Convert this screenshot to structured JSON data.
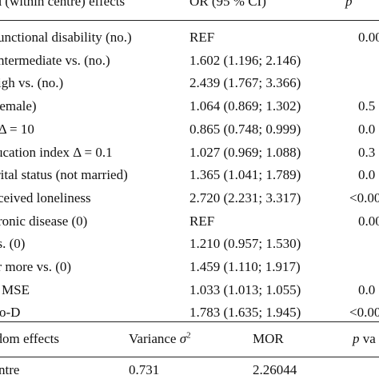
{
  "header": {
    "effects": "ed (within centre) effects",
    "or": "OR (95 % CI)",
    "p": "p**"
  },
  "fixed_rows": [
    {
      "label": "unctional disability (no.)",
      "or": "REF",
      "p": "0.00"
    },
    {
      "label": "ntermediate vs. (no.)",
      "or": "1.602 (1.196; 2.146)",
      "p": ""
    },
    {
      "label": "igh vs. (no.)",
      "or": "2.439 (1.767; 3.366)",
      "p": ""
    },
    {
      "label": "(female)",
      "or": "1.064 (0.869; 1.302)",
      "p": "0.5"
    },
    {
      "label": "e Δ = 10",
      "or": "0.865 (0.748; 0.999)",
      "p": "0.0"
    },
    {
      "label": "ucation index Δ = 0.1",
      "or": "1.027 (0.969; 1.088)",
      "p": "0.3"
    },
    {
      "label": "rital status (not married)",
      "or": "1.365 (1.041; 1.789)",
      "p": "0.0"
    },
    {
      "label": "ceived loneliness",
      "or": "2.720 (2.231; 3.317)",
      "p": "<0.00"
    },
    {
      "label": "ronic disease (0)",
      "or": "REF",
      "p": "0.00"
    },
    {
      "label": "vs. (0)",
      "or": "1.210 (0.957; 1.530)",
      "p": ""
    },
    {
      "label": "or more vs. (0)",
      "or": "1.459 (1.110; 1.917)",
      "p": ""
    },
    {
      "label": "MSE",
      "or": "1.033 (1.013; 1.055)",
      "p": "0.0"
    },
    {
      "label": "o-D",
      "or": "1.783 (1.635; 1.945)",
      "p": "<0.00"
    }
  ],
  "random_header": {
    "effects": "ndom effects",
    "variance": "Variance σ²",
    "mor": "MOR",
    "p": "p va"
  },
  "random_rows": [
    {
      "label": "ntre",
      "variance": "0.731",
      "mor": "2.26044",
      "p": ""
    }
  ]
}
